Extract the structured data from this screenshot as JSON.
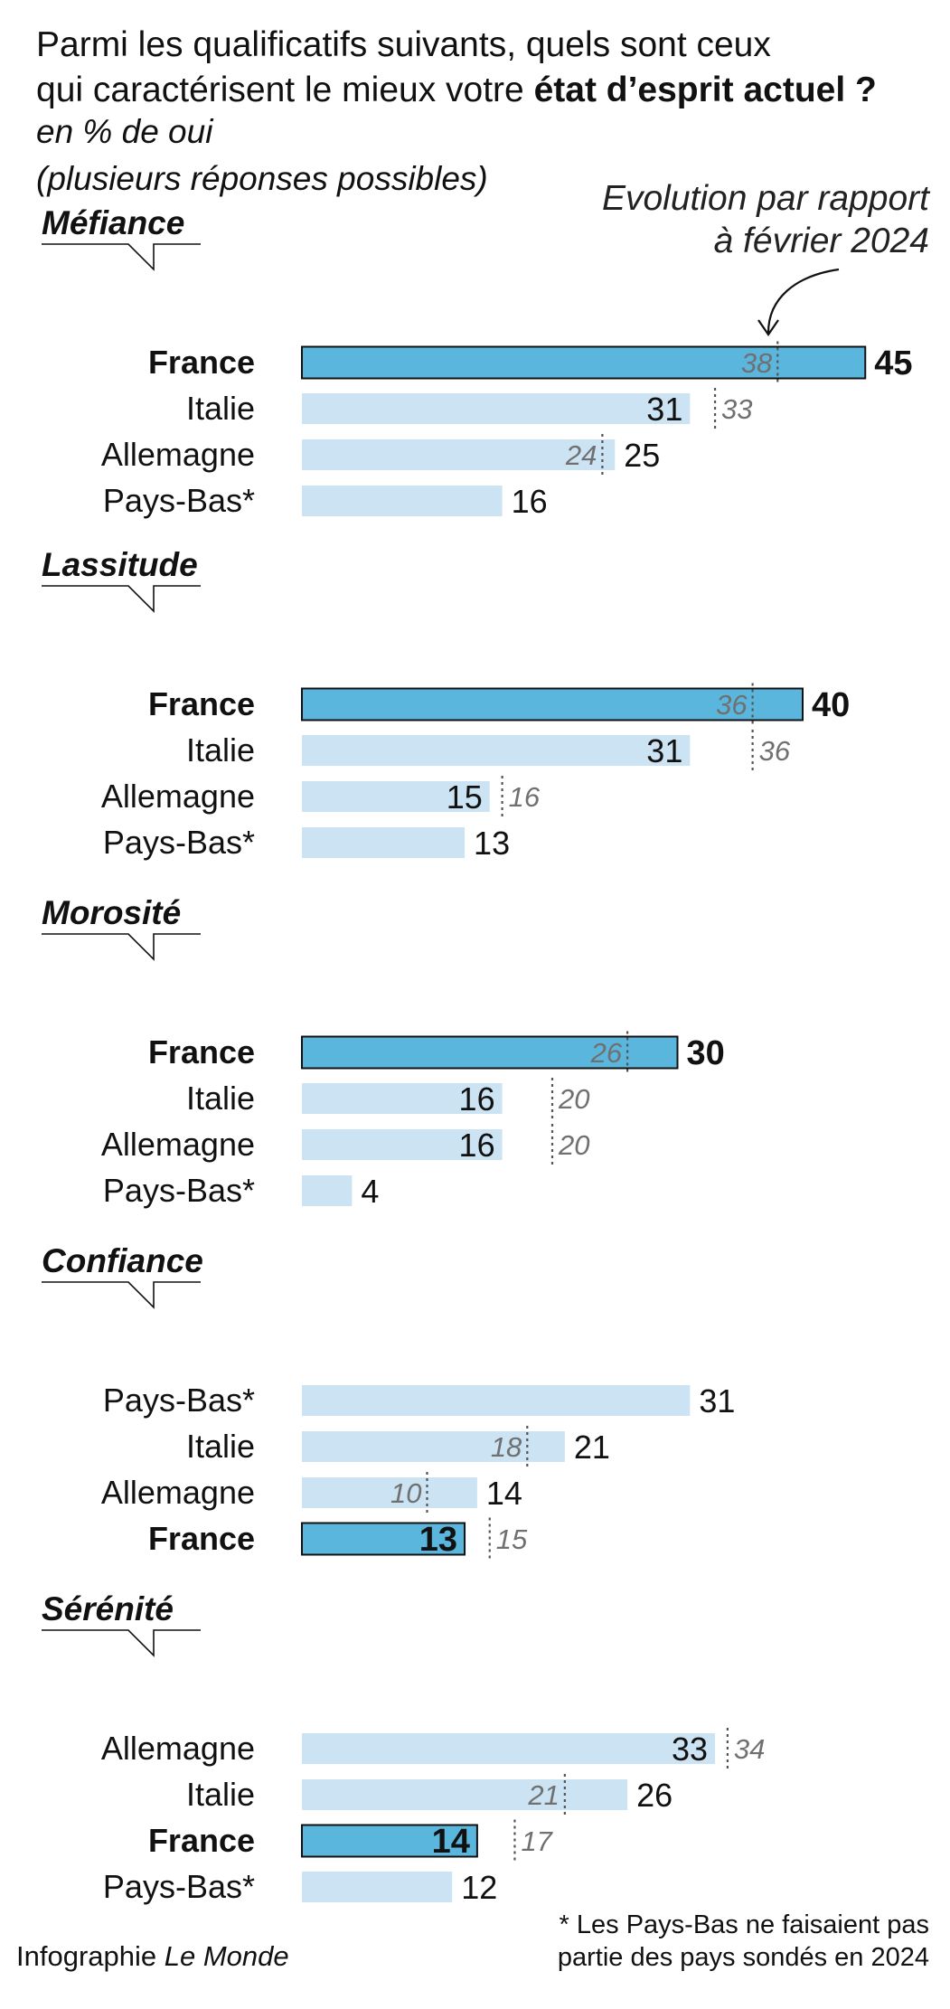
{
  "header": {
    "title_line1": "Parmi les qualificatifs suivants, quels sont ceux",
    "title_line2_start": "qui caractérisent le mieux votre ",
    "title_line2_bold": "état d’esprit actuel ?",
    "unit": "en % de oui",
    "note": "(plusieurs réponses possibles)"
  },
  "evolution_note": {
    "line1": "Evolution par rapport",
    "line2": "à février 2024"
  },
  "colors": {
    "france_bar": "#5ab6dd",
    "other_bar": "#cbe3f2",
    "france_border": "#111111",
    "prev_marker": "#555555",
    "prev_text": "#707070"
  },
  "chart_data": {
    "type": "bar",
    "orientation": "horizontal",
    "unit": "en % de oui",
    "xlim": [
      0,
      45
    ],
    "groups": [
      {
        "title": "Méfiance",
        "rows": [
          {
            "country": "France",
            "value": 45,
            "previous": 38
          },
          {
            "country": "Italie",
            "value": 31,
            "previous": 33
          },
          {
            "country": "Allemagne",
            "value": 25,
            "previous": 24
          },
          {
            "country": "Pays-Bas*",
            "value": 16,
            "previous": null
          }
        ]
      },
      {
        "title": "Lassitude",
        "rows": [
          {
            "country": "France",
            "value": 40,
            "previous": 36
          },
          {
            "country": "Italie",
            "value": 31,
            "previous": 36
          },
          {
            "country": "Allemagne",
            "value": 15,
            "previous": 16
          },
          {
            "country": "Pays-Bas*",
            "value": 13,
            "previous": null
          }
        ]
      },
      {
        "title": "Morosité",
        "rows": [
          {
            "country": "France",
            "value": 30,
            "previous": 26
          },
          {
            "country": "Italie",
            "value": 16,
            "previous": 20
          },
          {
            "country": "Allemagne",
            "value": 16,
            "previous": 20
          },
          {
            "country": "Pays-Bas*",
            "value": 4,
            "previous": null
          }
        ]
      },
      {
        "title": "Confiance",
        "rows": [
          {
            "country": "Pays-Bas*",
            "value": 31,
            "previous": null
          },
          {
            "country": "Italie",
            "value": 21,
            "previous": 18
          },
          {
            "country": "Allemagne",
            "value": 14,
            "previous": 10
          },
          {
            "country": "France",
            "value": 13,
            "previous": 15
          }
        ]
      },
      {
        "title": "Sérénité",
        "rows": [
          {
            "country": "Allemagne",
            "value": 33,
            "previous": 34
          },
          {
            "country": "Italie",
            "value": 26,
            "previous": 21
          },
          {
            "country": "France",
            "value": 14,
            "previous": 17
          },
          {
            "country": "Pays-Bas*",
            "value": 12,
            "previous": null
          }
        ]
      }
    ]
  },
  "footnote": {
    "line1": "* Les Pays-Bas ne faisaient pas",
    "line2": "partie des pays sondés en 2024"
  },
  "source": {
    "prefix": "Infographie ",
    "brand": "Le Monde"
  }
}
